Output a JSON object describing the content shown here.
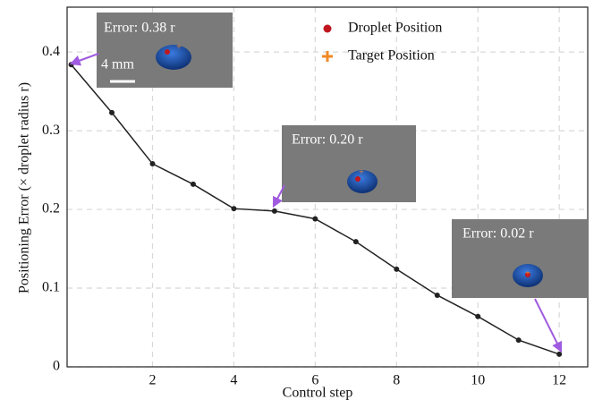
{
  "chart_data": {
    "type": "line",
    "x_label": "Control step",
    "y_label": "Positioning Error (× droplet radius r)",
    "x": [
      0,
      1,
      2,
      3,
      4,
      5,
      6,
      7,
      8,
      9,
      10,
      11,
      12
    ],
    "series": [
      {
        "color": "#222222",
        "values": [
          0.384,
          0.323,
          0.258,
          0.232,
          0.201,
          0.198,
          0.188,
          0.159,
          0.124,
          0.091,
          0.064,
          0.034,
          0.016
        ]
      }
    ],
    "xlim": [
      -0.1,
      12.7
    ],
    "xticks": [
      2,
      4,
      6,
      8,
      10,
      12
    ],
    "ylim": [
      0,
      0.457
    ],
    "yticks": [
      0,
      0.1,
      0.2,
      0.3,
      0.4
    ],
    "grid": true,
    "legend": [
      {
        "name": "Droplet Position",
        "color": "#c0171e"
      },
      {
        "name": "Target Position",
        "color": "#f08a24"
      }
    ],
    "annotations": [
      "Error: 0.38 r",
      "Error: 0.20 r",
      "Error: 0.02 r"
    ],
    "scale_bar": "4 mm"
  }
}
